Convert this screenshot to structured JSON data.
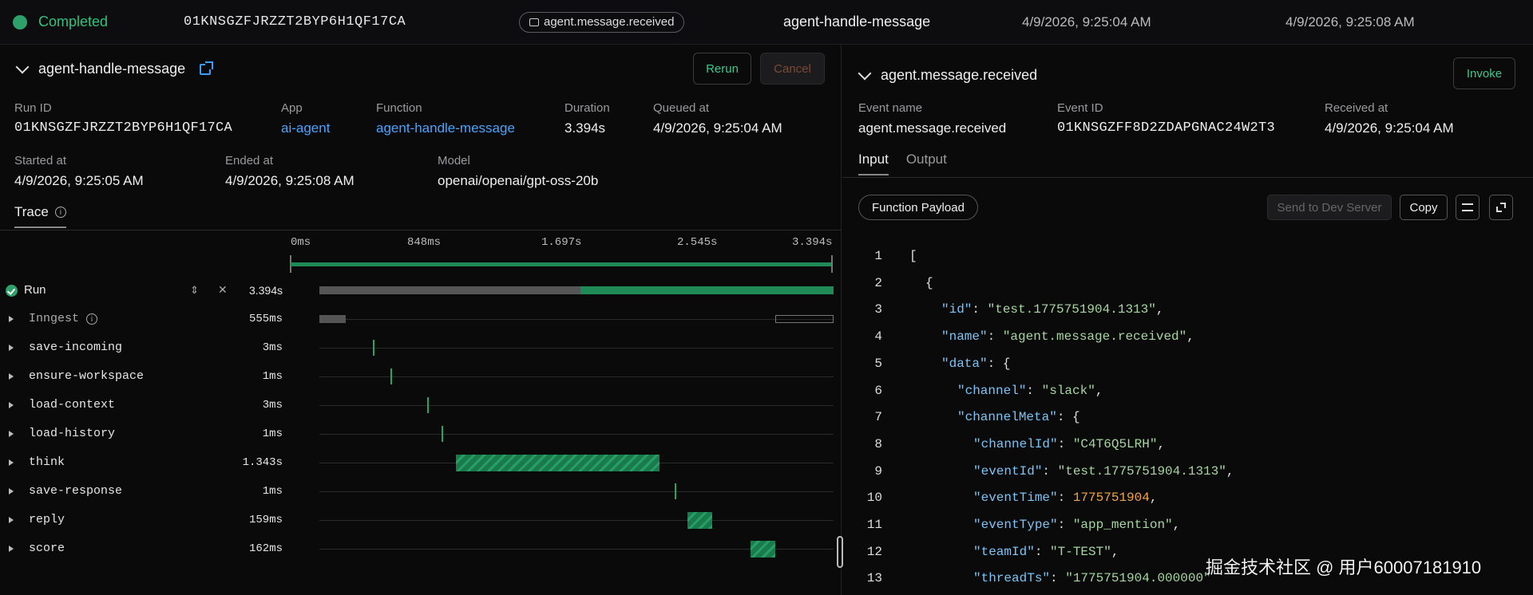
{
  "topbar": {
    "status": "Completed",
    "run_id": "01KNSGZFJRZZT2BYP6H1QF17CA",
    "event_pill": "agent.message.received",
    "function": "agent-handle-message",
    "queued_time": "4/9/2026, 9:25:04 AM",
    "ended_time": "4/9/2026, 9:25:08 AM",
    "status_color": "#2ea06a"
  },
  "left": {
    "function_title": "agent-handle-message",
    "rerun_label": "Rerun",
    "cancel_label": "Cancel",
    "meta": {
      "run_id_label": "Run ID",
      "run_id": "01KNSGZFJRZZT2BYP6H1QF17CA",
      "app_label": "App",
      "app": "ai-agent",
      "function_label": "Function",
      "function": "agent-handle-message",
      "duration_label": "Duration",
      "duration": "3.394s",
      "queued_label": "Queued at",
      "queued": "4/9/2026, 9:25:04 AM",
      "started_label": "Started at",
      "started": "4/9/2026, 9:25:05 AM",
      "ended_label": "Ended at",
      "ended": "4/9/2026, 9:25:08 AM",
      "model_label": "Model",
      "model": "openai/openai/gpt-oss-20b"
    },
    "trace_tab": "Trace",
    "axis": [
      "0ms",
      "848ms",
      "1.697s",
      "2.545s",
      "3.394s"
    ],
    "rows": [
      {
        "label": "Run",
        "duration": "3.394s"
      },
      {
        "label": "Inngest",
        "duration": "555ms"
      },
      {
        "label": "save-incoming",
        "duration": "3ms"
      },
      {
        "label": "ensure-workspace",
        "duration": "1ms"
      },
      {
        "label": "load-context",
        "duration": "3ms"
      },
      {
        "label": "load-history",
        "duration": "1ms"
      },
      {
        "label": "think",
        "duration": "1.343s"
      },
      {
        "label": "save-response",
        "duration": "1ms"
      },
      {
        "label": "reply",
        "duration": "159ms"
      },
      {
        "label": "score",
        "duration": "162ms"
      }
    ]
  },
  "right": {
    "event_title": "agent.message.received",
    "invoke_label": "Invoke",
    "event_name_label": "Event name",
    "event_name": "agent.message.received",
    "event_id_label": "Event ID",
    "event_id": "01KNSGZFF8D2ZDAPGNAC24W2T3",
    "received_label": "Received at",
    "received": "4/9/2026, 9:25:04 AM",
    "tab_input": "Input",
    "tab_output": "Output",
    "payload_btn": "Function Payload",
    "dev_btn": "Send to Dev Server",
    "copy_btn": "Copy",
    "code_lines": [
      {
        "n": "1",
        "indent": 0,
        "parts": [
          [
            "p",
            "["
          ]
        ]
      },
      {
        "n": "2",
        "indent": 1,
        "parts": [
          [
            "p",
            "{"
          ]
        ]
      },
      {
        "n": "3",
        "indent": 2,
        "parts": [
          [
            "k",
            "\"id\""
          ],
          [
            "p",
            ": "
          ],
          [
            "s",
            "\"test.1775751904.1313\""
          ],
          [
            "p",
            ","
          ]
        ]
      },
      {
        "n": "4",
        "indent": 2,
        "parts": [
          [
            "k",
            "\"name\""
          ],
          [
            "p",
            ": "
          ],
          [
            "s",
            "\"agent.message.received\""
          ],
          [
            "p",
            ","
          ]
        ]
      },
      {
        "n": "5",
        "indent": 2,
        "parts": [
          [
            "k",
            "\"data\""
          ],
          [
            "p",
            ": {"
          ]
        ]
      },
      {
        "n": "6",
        "indent": 3,
        "parts": [
          [
            "k",
            "\"channel\""
          ],
          [
            "p",
            ": "
          ],
          [
            "s",
            "\"slack\""
          ],
          [
            "p",
            ","
          ]
        ]
      },
      {
        "n": "7",
        "indent": 3,
        "parts": [
          [
            "k",
            "\"channelMeta\""
          ],
          [
            "p",
            ": {"
          ]
        ]
      },
      {
        "n": "8",
        "indent": 4,
        "parts": [
          [
            "k",
            "\"channelId\""
          ],
          [
            "p",
            ": "
          ],
          [
            "s",
            "\"C4T6Q5LRH\""
          ],
          [
            "p",
            ","
          ]
        ]
      },
      {
        "n": "9",
        "indent": 4,
        "parts": [
          [
            "k",
            "\"eventId\""
          ],
          [
            "p",
            ": "
          ],
          [
            "s",
            "\"test.1775751904.1313\""
          ],
          [
            "p",
            ","
          ]
        ]
      },
      {
        "n": "10",
        "indent": 4,
        "parts": [
          [
            "k",
            "\"eventTime\""
          ],
          [
            "p",
            ": "
          ],
          [
            "n",
            "1775751904"
          ],
          [
            "p",
            ","
          ]
        ]
      },
      {
        "n": "11",
        "indent": 4,
        "parts": [
          [
            "k",
            "\"eventType\""
          ],
          [
            "p",
            ": "
          ],
          [
            "s",
            "\"app_mention\""
          ],
          [
            "p",
            ","
          ]
        ]
      },
      {
        "n": "12",
        "indent": 4,
        "parts": [
          [
            "k",
            "\"teamId\""
          ],
          [
            "p",
            ": "
          ],
          [
            "s",
            "\"T-TEST\""
          ],
          [
            "p",
            ","
          ]
        ]
      },
      {
        "n": "13",
        "indent": 4,
        "parts": [
          [
            "k",
            "\"threadTs\""
          ],
          [
            "p",
            ": "
          ],
          [
            "s",
            "\"1775751904.000000\""
          ]
        ]
      }
    ]
  },
  "watermark": "掘金技术社区 @ 用户60007181910"
}
